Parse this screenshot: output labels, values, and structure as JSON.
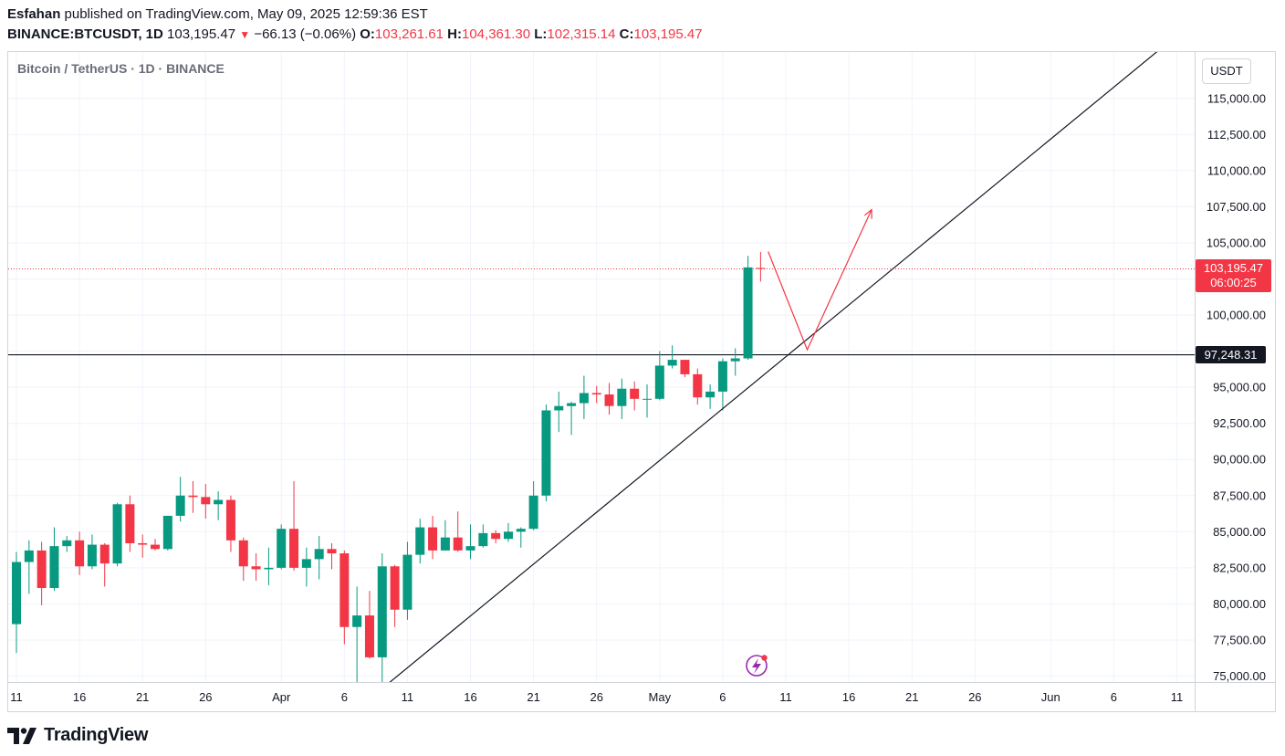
{
  "header": {
    "author": "Esfahan",
    "published_text": "published on TradingView.com, May 09, 2025 12:59:36 EST",
    "symbol": "BINANCE:BTCUSDT, 1D",
    "last": "103,195.47",
    "change": "−66.13 (−0.06%)",
    "o_label": "O:",
    "o_value": "103,261.61",
    "h_label": "H:",
    "h_value": "104,361.30",
    "l_label": "L:",
    "l_value": "102,315.14",
    "c_label": "C:",
    "c_value": "103,195.47"
  },
  "legend": "Bitcoin / TetherUS · 1D · BINANCE",
  "currency": "USDT",
  "price_tag": {
    "price": "103,195.47",
    "countdown": "06:00:25"
  },
  "hline_tag": "97,248.31",
  "branding": "TradingView",
  "colors": {
    "up": "#089981",
    "down": "#f23645",
    "grid": "#f0f3fa",
    "text": "#131722"
  },
  "chart_data": {
    "type": "candlestick",
    "title": "Bitcoin / TetherUS · 1D · BINANCE",
    "ylim": [
      74500,
      117500
    ],
    "y_ticks": [
      75000,
      77500,
      80000,
      82500,
      85000,
      87500,
      90000,
      92500,
      95000,
      97500,
      100000,
      102500,
      105000,
      107500,
      110000,
      112500,
      115000
    ],
    "y_tick_labels": [
      "75,000.00",
      "77,500.00",
      "80,000.00",
      "82,500.00",
      "85,000.00",
      "87,500.00",
      "90,000.00",
      "92,500.00",
      "95,000.00",
      "",
      "100,000.00",
      "",
      "105,000.00",
      "107,500.00",
      "110,000.00",
      "112,500.00",
      "115,000.00"
    ],
    "x_ticks": [
      {
        "day": 0,
        "label": "11"
      },
      {
        "day": 5,
        "label": "16"
      },
      {
        "day": 10,
        "label": "21"
      },
      {
        "day": 15,
        "label": "26"
      },
      {
        "day": 21,
        "label": "Apr"
      },
      {
        "day": 26,
        "label": "6"
      },
      {
        "day": 31,
        "label": "11"
      },
      {
        "day": 36,
        "label": "16"
      },
      {
        "day": 41,
        "label": "21"
      },
      {
        "day": 46,
        "label": "26"
      },
      {
        "day": 51,
        "label": "May"
      },
      {
        "day": 56,
        "label": "6"
      },
      {
        "day": 61,
        "label": "11"
      },
      {
        "day": 66,
        "label": "16"
      },
      {
        "day": 71,
        "label": "21"
      },
      {
        "day": 76,
        "label": "26"
      },
      {
        "day": 82,
        "label": "Jun"
      },
      {
        "day": 87,
        "label": "6"
      },
      {
        "day": 92,
        "label": "11"
      }
    ],
    "candles": [
      {
        "date": "Mar 11",
        "o": 78600,
        "h": 83600,
        "l": 76600,
        "c": 82900
      },
      {
        "date": "Mar 12",
        "o": 82900,
        "h": 84400,
        "l": 80700,
        "c": 83700
      },
      {
        "date": "Mar 13",
        "o": 83700,
        "h": 84300,
        "l": 79900,
        "c": 81100
      },
      {
        "date": "Mar 14",
        "o": 81100,
        "h": 85300,
        "l": 80900,
        "c": 84000
      },
      {
        "date": "Mar 15",
        "o": 84000,
        "h": 84700,
        "l": 83600,
        "c": 84400
      },
      {
        "date": "Mar 16",
        "o": 84400,
        "h": 85000,
        "l": 82000,
        "c": 82600
      },
      {
        "date": "Mar 17",
        "o": 82600,
        "h": 84800,
        "l": 82400,
        "c": 84100
      },
      {
        "date": "Mar 18",
        "o": 84100,
        "h": 84200,
        "l": 81200,
        "c": 82800
      },
      {
        "date": "Mar 19",
        "o": 82800,
        "h": 87000,
        "l": 82600,
        "c": 86900
      },
      {
        "date": "Mar 20",
        "o": 86900,
        "h": 87500,
        "l": 83600,
        "c": 84200
      },
      {
        "date": "Mar 21",
        "o": 84200,
        "h": 84800,
        "l": 83200,
        "c": 84100
      },
      {
        "date": "Mar 22",
        "o": 84100,
        "h": 84500,
        "l": 83700,
        "c": 83800
      },
      {
        "date": "Mar 23",
        "o": 83800,
        "h": 86100,
        "l": 83700,
        "c": 86100
      },
      {
        "date": "Mar 24",
        "o": 86100,
        "h": 88800,
        "l": 85700,
        "c": 87500
      },
      {
        "date": "Mar 25",
        "o": 87500,
        "h": 88500,
        "l": 86300,
        "c": 87400
      },
      {
        "date": "Mar 26",
        "o": 87400,
        "h": 88300,
        "l": 85900,
        "c": 86900
      },
      {
        "date": "Mar 27",
        "o": 86900,
        "h": 87800,
        "l": 85800,
        "c": 87200
      },
      {
        "date": "Mar 28",
        "o": 87200,
        "h": 87500,
        "l": 83600,
        "c": 84400
      },
      {
        "date": "Mar 29",
        "o": 84400,
        "h": 84600,
        "l": 81600,
        "c": 82600
      },
      {
        "date": "Mar 30",
        "o": 82600,
        "h": 83500,
        "l": 81600,
        "c": 82400
      },
      {
        "date": "Mar 31",
        "o": 82400,
        "h": 83900,
        "l": 81300,
        "c": 82500
      },
      {
        "date": "Apr 1",
        "o": 82500,
        "h": 85500,
        "l": 82400,
        "c": 85200
      },
      {
        "date": "Apr 2",
        "o": 85200,
        "h": 88500,
        "l": 82300,
        "c": 82500
      },
      {
        "date": "Apr 3",
        "o": 82500,
        "h": 83900,
        "l": 81200,
        "c": 83100
      },
      {
        "date": "Apr 4",
        "o": 83100,
        "h": 84700,
        "l": 81700,
        "c": 83800
      },
      {
        "date": "Apr 5",
        "o": 83800,
        "h": 84200,
        "l": 82400,
        "c": 83500
      },
      {
        "date": "Apr 6",
        "o": 83500,
        "h": 83700,
        "l": 77200,
        "c": 78400
      },
      {
        "date": "Apr 7",
        "o": 78400,
        "h": 81200,
        "l": 74500,
        "c": 79200
      },
      {
        "date": "Apr 8",
        "o": 79200,
        "h": 80900,
        "l": 76200,
        "c": 76300
      },
      {
        "date": "Apr 9",
        "o": 76300,
        "h": 83500,
        "l": 74600,
        "c": 82600
      },
      {
        "date": "Apr 10",
        "o": 82600,
        "h": 82700,
        "l": 78400,
        "c": 79600
      },
      {
        "date": "Apr 11",
        "o": 79600,
        "h": 84300,
        "l": 78900,
        "c": 83400
      },
      {
        "date": "Apr 12",
        "o": 83400,
        "h": 85900,
        "l": 82800,
        "c": 85300
      },
      {
        "date": "Apr 13",
        "o": 85300,
        "h": 86100,
        "l": 83100,
        "c": 83700
      },
      {
        "date": "Apr 14",
        "o": 83700,
        "h": 85800,
        "l": 83700,
        "c": 84600
      },
      {
        "date": "Apr 15",
        "o": 84600,
        "h": 86400,
        "l": 83600,
        "c": 83700
      },
      {
        "date": "Apr 16",
        "o": 83700,
        "h": 85500,
        "l": 83100,
        "c": 84000
      },
      {
        "date": "Apr 17",
        "o": 84000,
        "h": 85500,
        "l": 83900,
        "c": 84900
      },
      {
        "date": "Apr 18",
        "o": 84900,
        "h": 85100,
        "l": 84200,
        "c": 84500
      },
      {
        "date": "Apr 19",
        "o": 84500,
        "h": 85600,
        "l": 84300,
        "c": 85000
      },
      {
        "date": "Apr 20",
        "o": 85000,
        "h": 85300,
        "l": 83900,
        "c": 85200
      },
      {
        "date": "Apr 21",
        "o": 85200,
        "h": 88500,
        "l": 85100,
        "c": 87500
      },
      {
        "date": "Apr 22",
        "o": 87500,
        "h": 93800,
        "l": 87100,
        "c": 93400
      },
      {
        "date": "Apr 23",
        "o": 93400,
        "h": 94700,
        "l": 91900,
        "c": 93700
      },
      {
        "date": "Apr 24",
        "o": 93700,
        "h": 94000,
        "l": 91700,
        "c": 93900
      },
      {
        "date": "Apr 25",
        "o": 93900,
        "h": 95800,
        "l": 92800,
        "c": 94600
      },
      {
        "date": "Apr 26",
        "o": 94600,
        "h": 95100,
        "l": 93900,
        "c": 94500
      },
      {
        "date": "Apr 27",
        "o": 94500,
        "h": 95300,
        "l": 93100,
        "c": 93700
      },
      {
        "date": "Apr 28",
        "o": 93700,
        "h": 95600,
        "l": 92800,
        "c": 94900
      },
      {
        "date": "Apr 29",
        "o": 94900,
        "h": 95400,
        "l": 93400,
        "c": 94200
      },
      {
        "date": "Apr 30",
        "o": 94200,
        "h": 95200,
        "l": 92900,
        "c": 94200
      },
      {
        "date": "May 1",
        "o": 94200,
        "h": 97500,
        "l": 94100,
        "c": 96500
      },
      {
        "date": "May 2",
        "o": 96500,
        "h": 97900,
        "l": 96300,
        "c": 96900
      },
      {
        "date": "May 3",
        "o": 96900,
        "h": 96900,
        "l": 95700,
        "c": 95900
      },
      {
        "date": "May 4",
        "o": 95900,
        "h": 96300,
        "l": 93800,
        "c": 94300
      },
      {
        "date": "May 5",
        "o": 94300,
        "h": 95200,
        "l": 93500,
        "c": 94700
      },
      {
        "date": "May 6",
        "o": 94700,
        "h": 97000,
        "l": 93400,
        "c": 96800
      },
      {
        "date": "May 7",
        "o": 96800,
        "h": 97700,
        "l": 95800,
        "c": 97000
      },
      {
        "date": "May 8",
        "o": 97000,
        "h": 104100,
        "l": 96900,
        "c": 103300
      },
      {
        "date": "May 9",
        "o": 103261.61,
        "h": 104361.3,
        "l": 102315.14,
        "c": 103195.47
      }
    ],
    "last_price": 103195.47,
    "horizontal_line": 97248.31,
    "trendline": {
      "from": {
        "day": 29.5,
        "price": 74500
      },
      "to": {
        "day": 94,
        "price": 120800
      }
    },
    "projection": [
      {
        "day": 59.6,
        "price": 104400
      },
      {
        "day": 62.7,
        "price": 97600
      },
      {
        "day": 67.8,
        "price": 107300
      }
    ]
  }
}
